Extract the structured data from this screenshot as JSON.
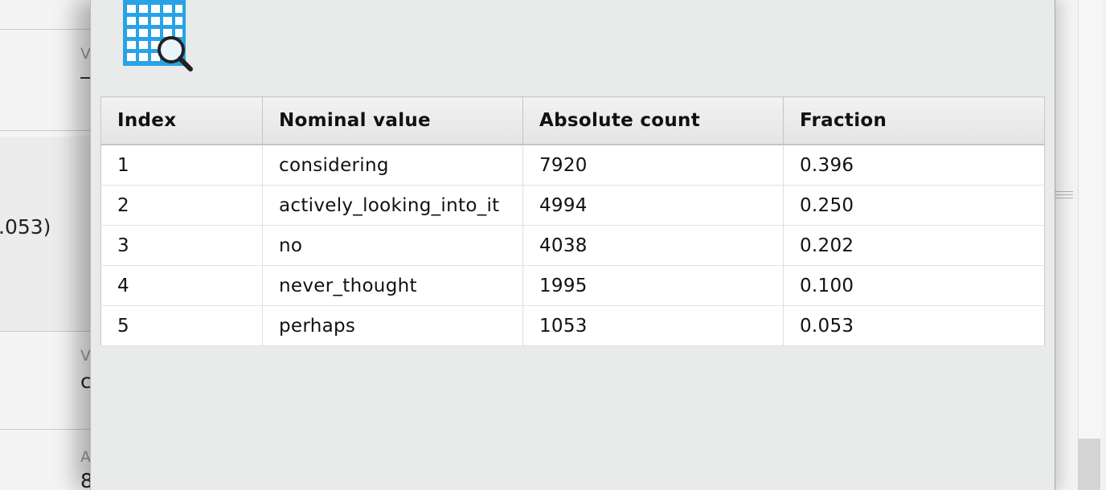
{
  "background": {
    "partial_value": ".053)",
    "partial_char_1": "c",
    "partial_char_2": "8",
    "faint_char_1": "V",
    "faint_char_2": "V",
    "faint_char_3": "A"
  },
  "dialog": {
    "icon": "table-magnifier-icon",
    "table": {
      "columns": [
        "Index",
        "Nominal value",
        "Absolute count",
        "Fraction"
      ],
      "rows": [
        [
          "1",
          "considering",
          "7920",
          "0.396"
        ],
        [
          "2",
          "actively_looking_into_it",
          "4994",
          "0.250"
        ],
        [
          "3",
          "no",
          "4038",
          "0.202"
        ],
        [
          "4",
          "never_thought",
          "1995",
          "0.100"
        ],
        [
          "5",
          "perhaps",
          "1053",
          "0.053"
        ]
      ]
    }
  },
  "colors": {
    "dialog_bg": "#e9eaea",
    "icon_blue": "#2aa3e6",
    "header_bg": "#ececec",
    "row_bg": "#ffffff"
  }
}
